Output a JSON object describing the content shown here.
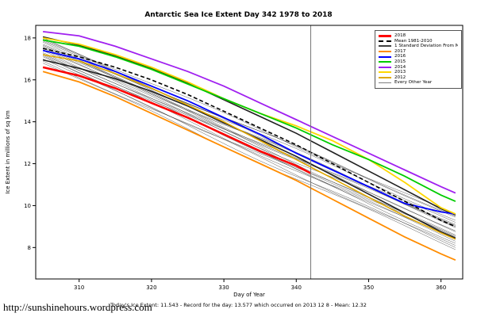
{
  "page": {
    "url_caption": "http://sunshinehours.wordpress.com"
  },
  "legend": {
    "items": [
      {
        "label": "2018",
        "color": "#ff0000",
        "lw": 3,
        "dash": false
      },
      {
        "label": "Mean 1981-2010",
        "color": "#000000",
        "lw": 2,
        "dash": true
      },
      {
        "label": "1 Standard Deviation From Mean",
        "color": "#404040",
        "lw": 2,
        "dash": false
      },
      {
        "label": "2017",
        "color": "#ff8c00",
        "lw": 2,
        "dash": false
      },
      {
        "label": "2016",
        "color": "#0000ff",
        "lw": 2,
        "dash": false
      },
      {
        "label": "2015",
        "color": "#00cc00",
        "lw": 2,
        "dash": false
      },
      {
        "label": "2014",
        "color": "#a020f0",
        "lw": 2,
        "dash": false
      },
      {
        "label": "2013",
        "color": "#ffd700",
        "lw": 2,
        "dash": false
      },
      {
        "label": "2012",
        "color": "#e0a800",
        "lw": 2,
        "dash": false
      },
      {
        "label": "Every Other Year",
        "color": "#808080",
        "lw": 1,
        "dash": false
      }
    ]
  },
  "chart_data": {
    "type": "line",
    "title": "Antarctic Sea Ice Extent Day 342 1978 to 2018",
    "xlabel": "Day of Year",
    "ylabel": "Ice Extent in millions of sq km",
    "footnote": "Today's Ice Extent: 11.543  - Record for the day: 13.577 which occurred on 2013 12 8  - Mean: 12.32",
    "xlim": [
      304,
      363
    ],
    "ylim": [
      6.5,
      18.6
    ],
    "x_ticks": [
      310,
      320,
      330,
      340,
      350,
      360
    ],
    "y_ticks": [
      8,
      10,
      12,
      14,
      16,
      18
    ],
    "marker_day": 342,
    "today_extent": 11.543,
    "record_extent": 13.577,
    "record_date": "2013 12 8",
    "mean_extent": 12.32,
    "x": [
      305,
      310,
      315,
      320,
      325,
      330,
      335,
      340,
      345,
      350,
      355,
      360,
      362
    ],
    "sd_offset": 0.55,
    "series": [
      {
        "name": "2017",
        "color": "#ff8c00",
        "width": 1.8,
        "dash": "",
        "values": [
          16.4,
          15.9,
          15.2,
          14.4,
          13.6,
          12.8,
          12.0,
          11.2,
          10.3,
          9.4,
          8.5,
          7.7,
          7.4
        ]
      },
      {
        "name": "2012",
        "color": "#e0a800",
        "width": 1.6,
        "dash": "",
        "values": [
          17.2,
          16.9,
          16.3,
          15.6,
          14.8,
          14.0,
          13.1,
          12.2,
          11.3,
          10.4,
          9.5,
          8.7,
          8.4
        ]
      },
      {
        "name": "2016",
        "color": "#0000ff",
        "width": 1.8,
        "dash": "",
        "values": [
          17.4,
          17.0,
          16.4,
          15.7,
          15.0,
          14.2,
          13.4,
          12.5,
          11.7,
          10.9,
          10.1,
          9.7,
          9.6
        ]
      },
      {
        "name": "2013",
        "color": "#ffd700",
        "width": 1.8,
        "dash": "",
        "values": [
          18.0,
          17.7,
          17.2,
          16.6,
          15.9,
          15.1,
          14.4,
          13.8,
          13.1,
          12.2,
          11.1,
          9.9,
          9.6
        ]
      },
      {
        "name": "2015",
        "color": "#00cc00",
        "width": 1.8,
        "dash": "",
        "values": [
          17.9,
          17.6,
          17.1,
          16.5,
          15.8,
          15.1,
          14.4,
          13.7,
          12.9,
          12.2,
          11.4,
          10.5,
          10.2
        ]
      },
      {
        "name": "2014",
        "color": "#a020f0",
        "width": 1.8,
        "dash": "",
        "values": [
          18.3,
          18.1,
          17.6,
          17.0,
          16.4,
          15.7,
          14.9,
          14.1,
          13.3,
          12.5,
          11.7,
          10.9,
          10.6
        ]
      },
      {
        "name": "Mean 1981-2010",
        "color": "#000000",
        "width": 1.6,
        "dash": "5,3",
        "values": [
          17.5,
          17.1,
          16.6,
          16.0,
          15.3,
          14.5,
          13.7,
          12.9,
          12.0,
          11.1,
          10.2,
          9.3,
          9.0
        ]
      },
      {
        "name": "2018",
        "color": "#ff0000",
        "width": 2.6,
        "dash": "",
        "x": [
          305,
          310,
          315,
          320,
          325,
          330,
          335,
          340,
          342
        ],
        "values": [
          16.6,
          16.2,
          15.6,
          14.9,
          14.2,
          13.4,
          12.6,
          11.9,
          11.543
        ]
      }
    ],
    "background_series": [
      [
        17.2,
        8.3
      ],
      [
        17.5,
        8.8
      ],
      [
        17.8,
        9.2
      ],
      [
        17.0,
        8.0
      ],
      [
        17.9,
        9.5
      ],
      [
        17.4,
        8.6
      ],
      [
        17.6,
        9.0
      ],
      [
        17.1,
        8.2
      ],
      [
        18.0,
        9.6
      ],
      [
        17.3,
        8.5
      ],
      [
        17.7,
        9.1
      ],
      [
        16.9,
        8.1
      ],
      [
        17.45,
        8.75
      ],
      [
        17.85,
        9.3
      ],
      [
        17.15,
        8.4
      ],
      [
        17.55,
        8.95
      ],
      [
        17.95,
        9.45
      ],
      [
        17.25,
        8.55
      ],
      [
        16.8,
        7.9
      ],
      [
        17.65,
        9.05
      ]
    ]
  }
}
